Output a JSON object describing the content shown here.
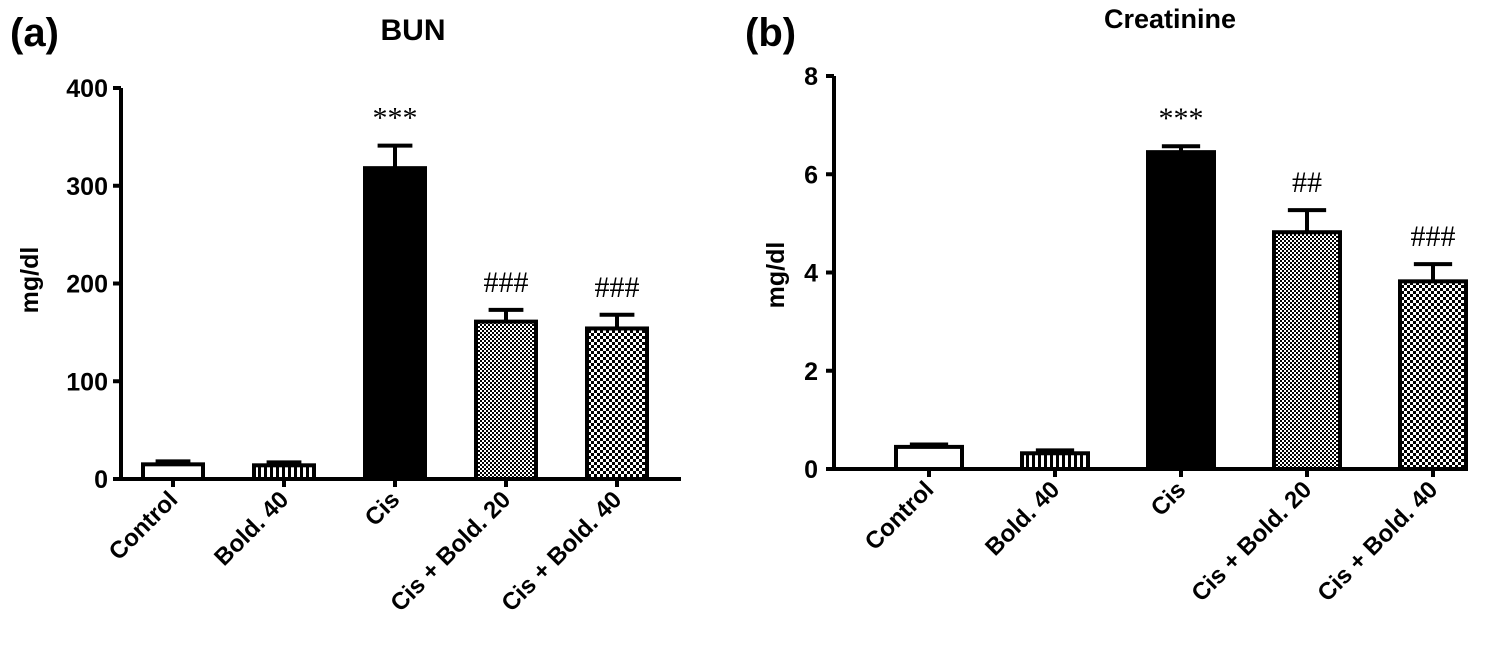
{
  "colors": {
    "ink": "#000000",
    "paper": "#ffffff"
  },
  "chart_data": [
    {
      "type": "bar",
      "panel_label": "(a)",
      "title": "BUN",
      "ylabel": "mg/dl",
      "xlabel": "",
      "ylim": [
        0,
        400
      ],
      "yticks": [
        0,
        100,
        200,
        300,
        400
      ],
      "yticklabels": [
        "0",
        "100",
        "200",
        "300",
        "400"
      ],
      "categories": [
        "Control",
        "Bold. 40",
        "Cis",
        "Cis + Bold. 20",
        "Cis + Bold. 40"
      ],
      "values": [
        15,
        14,
        318,
        161,
        154
      ],
      "errors": [
        3,
        3,
        23,
        12,
        14
      ],
      "fills": [
        "white",
        "vertical-lines",
        "black",
        "fine-check",
        "coarse-check"
      ],
      "annotations": [
        "",
        "",
        "***",
        "###",
        "###"
      ]
    },
    {
      "type": "bar",
      "panel_label": "(b)",
      "title": "Creatinine",
      "ylabel": "mg/dl",
      "xlabel": "",
      "ylim": [
        0,
        8
      ],
      "yticks": [
        0,
        2,
        4,
        6,
        8
      ],
      "yticklabels": [
        "0",
        "2",
        "4",
        "6",
        "8"
      ],
      "categories": [
        "Control",
        "Bold. 40",
        "Cis",
        "Cis + Bold. 20",
        "Cis + Bold. 40"
      ],
      "values": [
        0.45,
        0.32,
        6.45,
        4.82,
        3.82
      ],
      "errors": [
        0.05,
        0.06,
        0.12,
        0.45,
        0.35
      ],
      "fills": [
        "white",
        "vertical-lines",
        "black",
        "fine-check",
        "coarse-check"
      ],
      "annotations": [
        "",
        "",
        "***",
        "##",
        "###"
      ]
    }
  ]
}
